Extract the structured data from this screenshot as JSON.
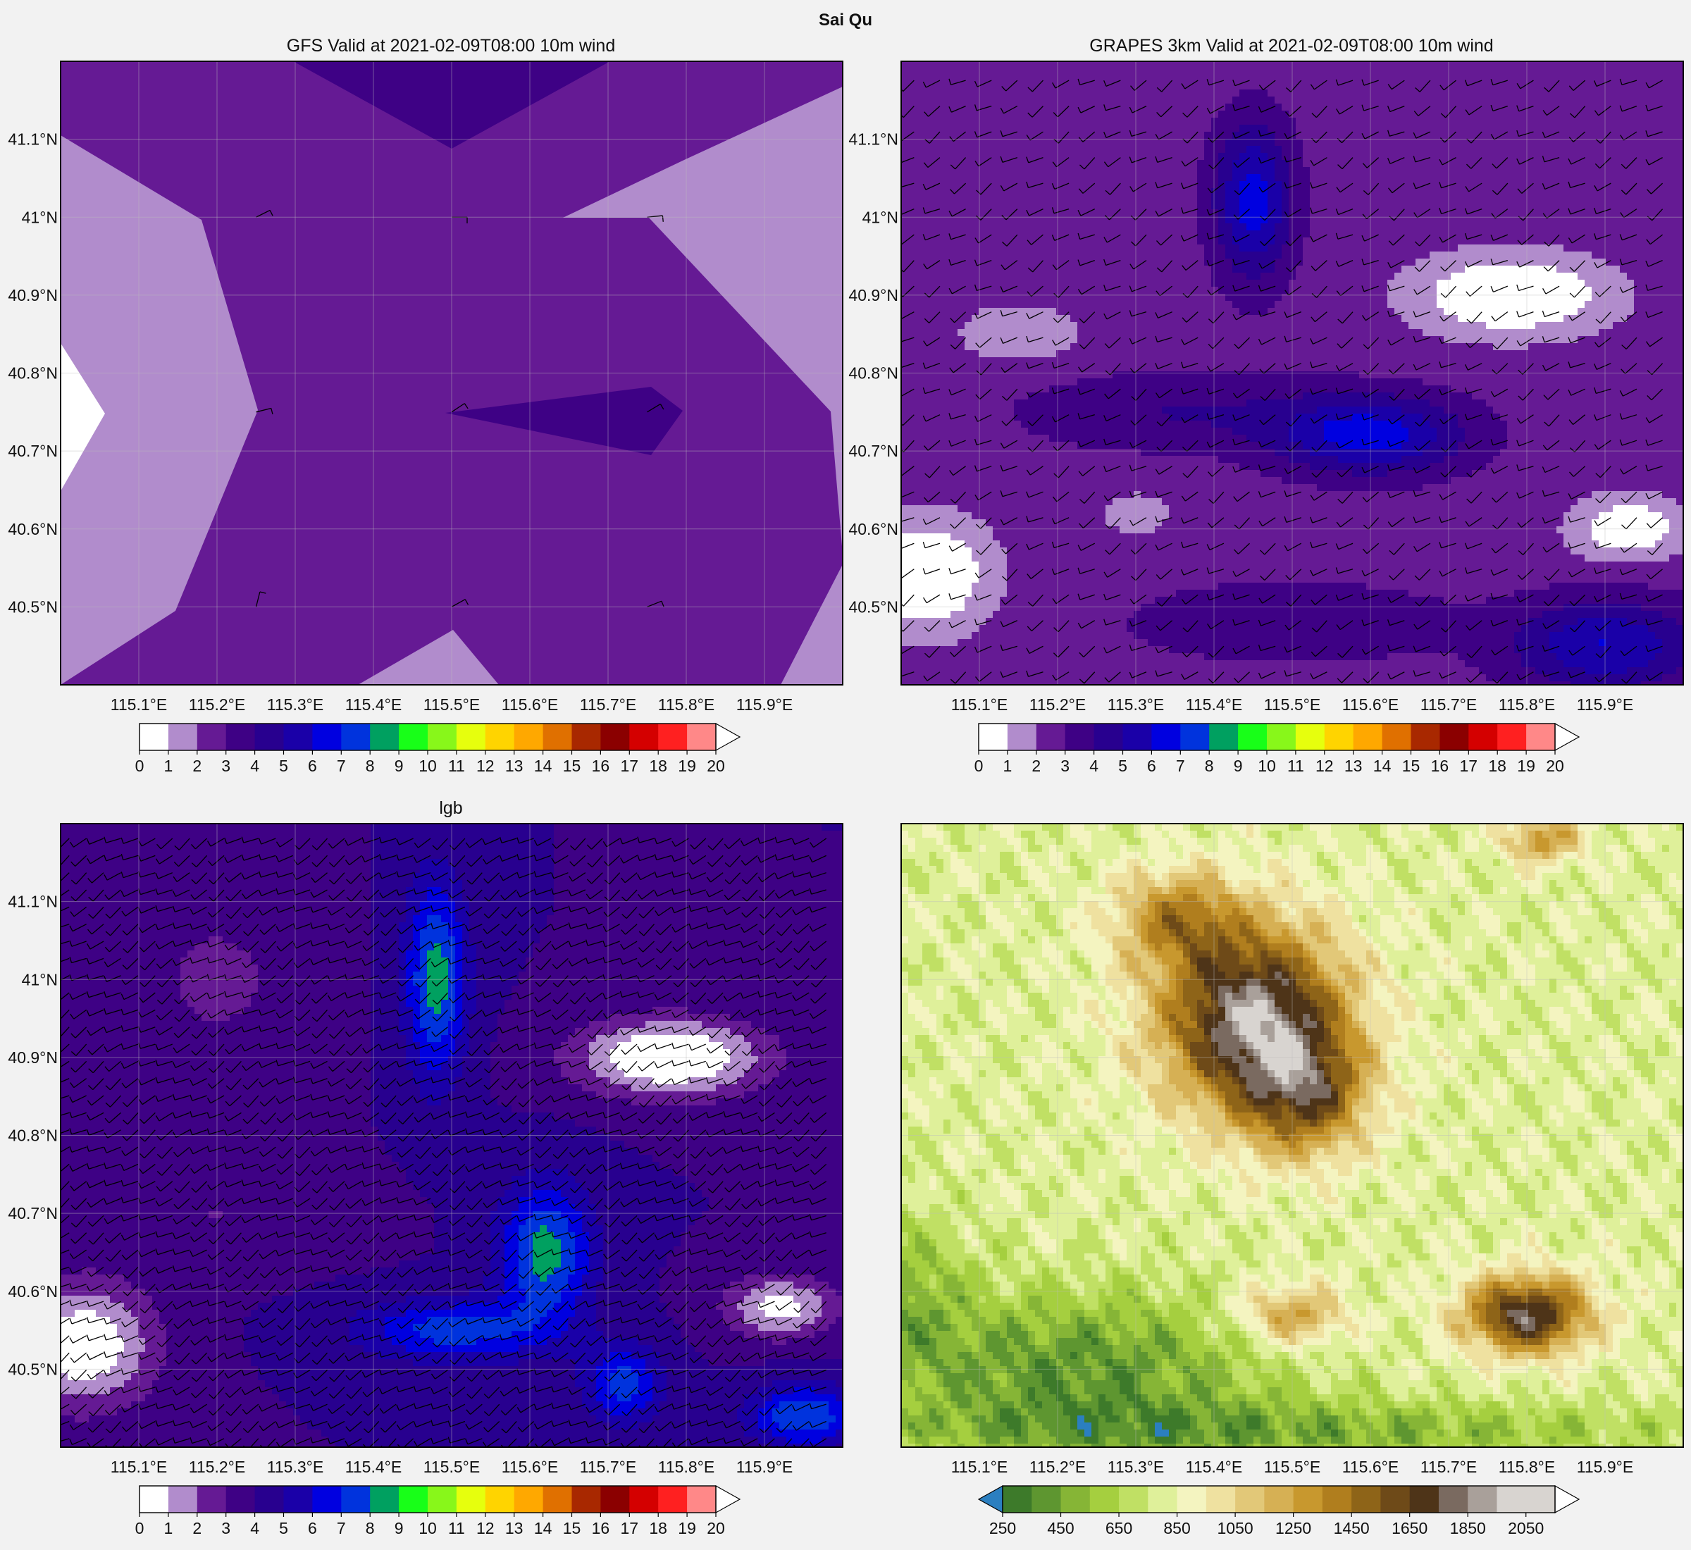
{
  "suptitle": "Sai Qu",
  "colors": {
    "wind_levels": [
      "#ffffff",
      "#b18ccc",
      "#651a94",
      "#3e0185",
      "#28008f",
      "#1a00a8",
      "#0000e0",
      "#0033dd",
      "#00a060",
      "#18ff18",
      "#88f71a",
      "#e6ff0d",
      "#ffd400",
      "#ffa800",
      "#e07000",
      "#a82800",
      "#8b0000",
      "#d40000",
      "#ff2020",
      "#ff8888"
    ],
    "terrain_levels": [
      "#2b7fc0",
      "#3d7a2a",
      "#5e9630",
      "#86b536",
      "#a5cf3f",
      "#c0e064",
      "#dff09a",
      "#f4f4c0",
      "#efe1a0",
      "#e2c878",
      "#d6b054",
      "#c8982e",
      "#b07e1e",
      "#8e6418",
      "#6e4a18",
      "#4e3418",
      "#7a6a60",
      "#a9a09a",
      "#d8d4d0"
    ],
    "frame": "#000000",
    "grid": "#bdbdbd"
  },
  "chart_data": [
    {
      "id": "gfs",
      "type": "heatmap",
      "title": "GFS Valid at 2021-02-09T08:00 10m wind",
      "field": "10m wind speed",
      "lon_range": [
        115.0,
        116.0
      ],
      "lat_range": [
        40.4,
        41.2
      ],
      "xticks": [
        115.1,
        115.2,
        115.3,
        115.4,
        115.5,
        115.6,
        115.7,
        115.8,
        115.9
      ],
      "xtick_labels": [
        "115.1°E",
        "115.2°E",
        "115.3°E",
        "115.4°E",
        "115.5°E",
        "115.6°E",
        "115.7°E",
        "115.8°E",
        "115.9°E"
      ],
      "yticks": [
        40.5,
        40.6,
        40.7,
        40.8,
        40.9,
        41.0,
        41.1
      ],
      "ytick_labels": [
        "40.5°N",
        "40.6°N",
        "40.7°N",
        "40.8°N",
        "40.9°N",
        "41°N",
        "41.1°N"
      ],
      "grid": true,
      "colorbar": {
        "levels": [
          0,
          1,
          2,
          3,
          4,
          5,
          6,
          7,
          8,
          9,
          10,
          11,
          12,
          13,
          14,
          15,
          16,
          17,
          18,
          19,
          20
        ],
        "labels": [
          "0",
          "1",
          "2",
          "3",
          "4",
          "5",
          "6",
          "7",
          "8",
          "9",
          "10",
          "11",
          "12",
          "13",
          "14",
          "15",
          "16",
          "17",
          "18",
          "19",
          "20"
        ],
        "extend": "max"
      },
      "barbs": [
        {
          "lon": 115.25,
          "lat": 41.0,
          "u": 2.0,
          "v": 1.0
        },
        {
          "lon": 115.5,
          "lat": 41.0,
          "u": 2.0,
          "v": 0.0
        },
        {
          "lon": 115.75,
          "lat": 41.0,
          "u": 2.0,
          "v": 0.2
        },
        {
          "lon": 115.25,
          "lat": 40.75,
          "u": 2.0,
          "v": 0.5
        },
        {
          "lon": 115.5,
          "lat": 40.75,
          "u": 1.5,
          "v": 1.0
        },
        {
          "lon": 115.75,
          "lat": 40.75,
          "u": 2.0,
          "v": 1.2
        },
        {
          "lon": 115.25,
          "lat": 40.5,
          "u": 0.5,
          "v": 2.0
        },
        {
          "lon": 115.5,
          "lat": 40.5,
          "u": 1.8,
          "v": 1.0
        },
        {
          "lon": 115.75,
          "lat": 40.5,
          "u": 2.0,
          "v": 0.8
        }
      ]
    },
    {
      "id": "grapes",
      "type": "heatmap",
      "title": "GRAPES 3km Valid at 2021-02-09T08:00 10m wind",
      "field": "10m wind speed",
      "lon_range": [
        115.0,
        116.0
      ],
      "lat_range": [
        40.4,
        41.2
      ],
      "xticks": [
        115.1,
        115.2,
        115.3,
        115.4,
        115.5,
        115.6,
        115.7,
        115.8,
        115.9
      ],
      "xtick_labels": [
        "115.1°E",
        "115.2°E",
        "115.3°E",
        "115.4°E",
        "115.5°E",
        "115.6°E",
        "115.7°E",
        "115.8°E",
        "115.9°E"
      ],
      "yticks": [
        40.5,
        40.6,
        40.7,
        40.8,
        40.9,
        41.0,
        41.1
      ],
      "ytick_labels": [
        "40.5°N",
        "40.6°N",
        "40.7°N",
        "40.8°N",
        "40.9°N",
        "41°N",
        "41.1°N"
      ],
      "grid": true,
      "colorbar": {
        "levels": [
          0,
          1,
          2,
          3,
          4,
          5,
          6,
          7,
          8,
          9,
          10,
          11,
          12,
          13,
          14,
          15,
          16,
          17,
          18,
          19,
          20
        ],
        "labels": [
          "0",
          "1",
          "2",
          "3",
          "4",
          "5",
          "6",
          "7",
          "8",
          "9",
          "10",
          "11",
          "12",
          "13",
          "14",
          "15",
          "16",
          "17",
          "18",
          "19",
          "20"
        ],
        "extend": "max"
      },
      "background": 2.5,
      "features": [
        {
          "lon": 115.45,
          "lat": 41.02,
          "rlon": 0.05,
          "rlat": 0.1,
          "amp": 4.0
        },
        {
          "lon": 115.6,
          "lat": 40.72,
          "rlon": 0.12,
          "rlat": 0.05,
          "amp": 4.0
        },
        {
          "lon": 115.35,
          "lat": 40.75,
          "rlon": 0.2,
          "rlat": 0.05,
          "amp": 1.5
        },
        {
          "lon": 115.9,
          "lat": 40.45,
          "rlon": 0.12,
          "rlat": 0.06,
          "amp": 3.5
        },
        {
          "lon": 115.5,
          "lat": 40.48,
          "rlon": 0.2,
          "rlat": 0.05,
          "amp": 1.5
        },
        {
          "lon": 115.78,
          "lat": 40.9,
          "rlon": 0.12,
          "rlat": 0.05,
          "amp": -3.0
        },
        {
          "lon": 115.03,
          "lat": 40.54,
          "rlon": 0.08,
          "rlat": 0.07,
          "amp": -3.0
        },
        {
          "lon": 115.93,
          "lat": 40.6,
          "rlon": 0.07,
          "rlat": 0.04,
          "amp": -2.5
        },
        {
          "lon": 115.15,
          "lat": 40.85,
          "rlon": 0.08,
          "rlat": 0.04,
          "amp": -1.2
        },
        {
          "lon": 115.3,
          "lat": 40.62,
          "rlon": 0.05,
          "rlat": 0.03,
          "amp": -1.0
        }
      ],
      "barb_grid": {
        "dlon": 0.033,
        "dlat": 0.033,
        "u": -2.5,
        "v": -1.5
      }
    },
    {
      "id": "lgb",
      "type": "heatmap",
      "title": "lgb",
      "field": "10m wind speed",
      "lon_range": [
        115.0,
        116.0
      ],
      "lat_range": [
        40.4,
        41.2
      ],
      "xticks": [
        115.1,
        115.2,
        115.3,
        115.4,
        115.5,
        115.6,
        115.7,
        115.8,
        115.9
      ],
      "xtick_labels": [
        "115.1°E",
        "115.2°E",
        "115.3°E",
        "115.4°E",
        "115.5°E",
        "115.6°E",
        "115.7°E",
        "115.8°E",
        "115.9°E"
      ],
      "yticks": [
        40.5,
        40.6,
        40.7,
        40.8,
        40.9,
        41.0,
        41.1
      ],
      "ytick_labels": [
        "40.5°N",
        "40.6°N",
        "40.7°N",
        "40.8°N",
        "40.9°N",
        "41°N",
        "41.1°N"
      ],
      "grid": true,
      "colorbar": {
        "levels": [
          0,
          1,
          2,
          3,
          4,
          5,
          6,
          7,
          8,
          9,
          10,
          11,
          12,
          13,
          14,
          15,
          16,
          17,
          18,
          19,
          20
        ],
        "labels": [
          "0",
          "1",
          "2",
          "3",
          "4",
          "5",
          "6",
          "7",
          "8",
          "9",
          "10",
          "11",
          "12",
          "13",
          "14",
          "15",
          "16",
          "17",
          "18",
          "19",
          "20"
        ],
        "extend": "max"
      },
      "background": 4.0,
      "features": [
        {
          "lon": 115.48,
          "lat": 41.0,
          "rlon": 0.04,
          "rlat": 0.13,
          "amp": 4.5
        },
        {
          "lon": 115.62,
          "lat": 40.65,
          "rlon": 0.06,
          "rlat": 0.09,
          "amp": 4.5
        },
        {
          "lon": 115.5,
          "lat": 40.55,
          "rlon": 0.12,
          "rlat": 0.04,
          "amp": 3.5
        },
        {
          "lon": 115.72,
          "lat": 40.48,
          "rlon": 0.05,
          "rlat": 0.05,
          "amp": 3.5
        },
        {
          "lon": 115.95,
          "lat": 40.44,
          "rlon": 0.07,
          "rlat": 0.04,
          "amp": 4.0
        },
        {
          "lon": 115.78,
          "lat": 40.9,
          "rlon": 0.12,
          "rlat": 0.05,
          "amp": -4.5
        },
        {
          "lon": 115.03,
          "lat": 40.53,
          "rlon": 0.09,
          "rlat": 0.08,
          "amp": -4.0
        },
        {
          "lon": 115.92,
          "lat": 40.58,
          "rlon": 0.07,
          "rlat": 0.04,
          "amp": -3.5
        },
        {
          "lon": 115.2,
          "lat": 41.0,
          "rlon": 0.12,
          "rlat": 0.12,
          "amp": -1.2
        },
        {
          "lon": 115.2,
          "lat": 40.7,
          "rlon": 0.15,
          "rlat": 0.06,
          "amp": -1.0
        }
      ],
      "barb_grid": {
        "dlon": 0.022,
        "dlat": 0.022,
        "u": -2.5,
        "v": -1.5
      }
    },
    {
      "id": "terrain",
      "type": "heatmap",
      "title": "",
      "field": "terrain elevation",
      "lon_range": [
        115.0,
        116.0
      ],
      "lat_range": [
        40.4,
        41.2
      ],
      "xticks": [
        115.1,
        115.2,
        115.3,
        115.4,
        115.5,
        115.6,
        115.7,
        115.8,
        115.9
      ],
      "xtick_labels": [
        "115.1°E",
        "115.2°E",
        "115.3°E",
        "115.4°E",
        "115.5°E",
        "115.6°E",
        "115.7°E",
        "115.8°E",
        "115.9°E"
      ],
      "yticks": [
        40.5,
        40.6,
        40.7,
        40.8,
        40.9,
        41.0,
        41.1
      ],
      "ytick_labels": [],
      "grid": true,
      "colorbar": {
        "levels": [
          250,
          350,
          450,
          550,
          650,
          750,
          850,
          950,
          1050,
          1150,
          1250,
          1350,
          1450,
          1550,
          1650,
          1750,
          1850,
          1950,
          2050,
          2150
        ],
        "labels": [
          "250",
          "450",
          "650",
          "850",
          "1050",
          "1250",
          "1450",
          "1650",
          "1850",
          "2050"
        ],
        "label_values": [
          250,
          450,
          650,
          850,
          1050,
          1250,
          1450,
          1650,
          1850,
          2050
        ],
        "extend": "both"
      },
      "background": 900,
      "features": [
        {
          "lon": 115.45,
          "lat": 40.95,
          "rlon": 0.12,
          "rlat": 0.12,
          "amp": 1100
        },
        {
          "lon": 115.35,
          "lat": 41.08,
          "rlon": 0.08,
          "rlat": 0.06,
          "amp": 500
        },
        {
          "lon": 115.52,
          "lat": 40.85,
          "rlon": 0.08,
          "rlat": 0.08,
          "amp": 600
        },
        {
          "lon": 115.8,
          "lat": 40.57,
          "rlon": 0.08,
          "rlat": 0.05,
          "amp": 1000
        },
        {
          "lon": 115.5,
          "lat": 40.57,
          "rlon": 0.07,
          "rlat": 0.04,
          "amp": 500
        },
        {
          "lon": 115.82,
          "lat": 41.18,
          "rlon": 0.05,
          "rlat": 0.03,
          "amp": 500
        },
        {
          "lon": 115.22,
          "lat": 40.5,
          "rlon": 0.25,
          "rlat": 0.1,
          "amp": -400
        },
        {
          "lon": 115.5,
          "lat": 40.42,
          "rlon": 0.5,
          "rlat": 0.04,
          "amp": -300
        },
        {
          "lon": 115.0,
          "lat": 40.6,
          "rlon": 0.08,
          "rlat": 0.1,
          "amp": -250
        }
      ]
    }
  ]
}
